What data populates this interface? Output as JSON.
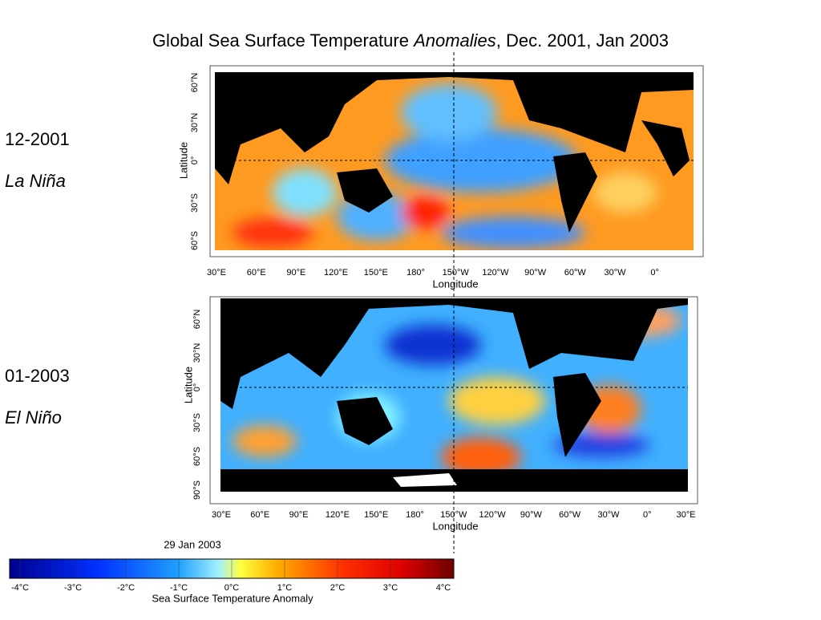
{
  "title": {
    "before": "Global Sea Surface Temperature",
    "italic": "Anomalies",
    "after": ", Dec. 2001, Jan 2003"
  },
  "panels": [
    {
      "date": "12-2001",
      "event": "La Niña",
      "lat_label": "Latitude",
      "lon_label": "Longitude",
      "lat_ticks": [
        "60°N",
        "30°N",
        "0°",
        "30°S",
        "60°S"
      ],
      "lon_ticks": [
        "30°E",
        "60°E",
        "90°E",
        "120°E",
        "150°E",
        "180°",
        "150°W",
        "120°W",
        "90°W",
        "60°W",
        "30°W",
        "0°"
      ]
    },
    {
      "date": "01-2003",
      "event": "El Niño",
      "lat_label": "Latitude",
      "lon_label": "Longitude",
      "lat_ticks": [
        "60°N",
        "30°N",
        "0°",
        "30°S",
        "60°S",
        "90°S"
      ],
      "lon_ticks": [
        "30°E",
        "60°E",
        "90°E",
        "120°E",
        "150°E",
        "180°",
        "150°W",
        "120°W",
        "90°W",
        "60°W",
        "30°W",
        "0°",
        "30°E"
      ]
    }
  ],
  "colorbar": {
    "date": "29 Jan 2003",
    "ticks": [
      "-4°C",
      "-3°C",
      "-2°C",
      "-1°C",
      "0°C",
      "1°C",
      "2°C",
      "3°C",
      "4°C"
    ],
    "label": "Sea Surface Temperature Anomaly"
  }
}
